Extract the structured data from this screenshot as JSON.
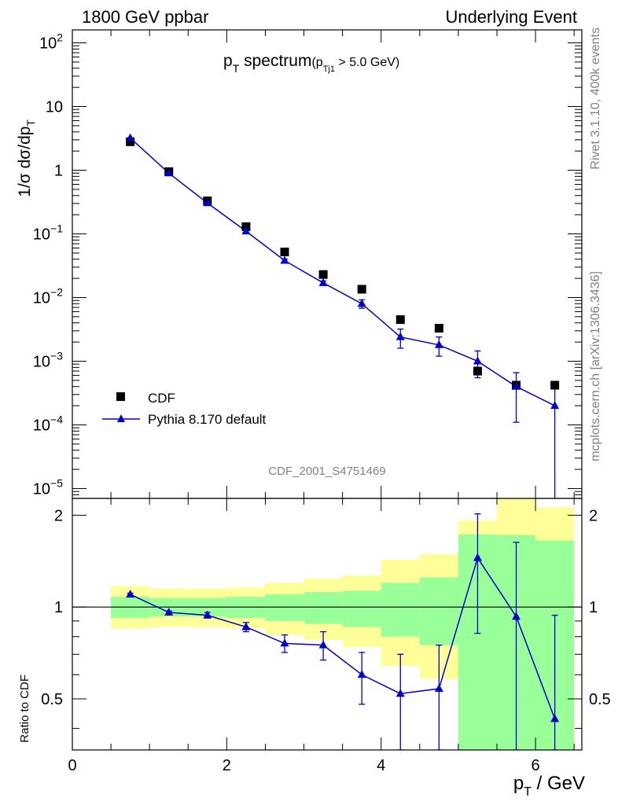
{
  "header": {
    "left": "1800 GeV ppbar",
    "right": "Underlying Event",
    "side_top": "Rivet 3.1.10,  400k events",
    "side_bottom": "mcplots.cern.ch [arXiv:1306.3436]"
  },
  "chart_data": [
    {
      "type": "scatter",
      "title": "p_T spectrum",
      "title_main": "p",
      "title_sub": "T",
      "title_rest": " spectrum",
      "cut_open": "(p",
      "cut_sub": "Tj1",
      "cut_rest": " > 5.0 GeV)",
      "analysis_label": "CDF_2001_S4751469",
      "y_scale": "log",
      "ylim": [
        7e-06,
        160
      ],
      "xlim": [
        0,
        6.6
      ],
      "ylabel_parts": [
        "1/σ dσ/dp",
        "T"
      ],
      "y_ticks": [
        {
          "value": 1e-05,
          "base": "10",
          "exp": "−5"
        },
        {
          "value": 0.0001,
          "base": "10",
          "exp": "−4"
        },
        {
          "value": 0.001,
          "base": "10",
          "exp": "−3"
        },
        {
          "value": 0.01,
          "base": "10",
          "exp": "−2"
        },
        {
          "value": 0.1,
          "base": "10",
          "exp": "−1"
        },
        {
          "value": 1,
          "base": "1",
          "exp": ""
        },
        {
          "value": 10,
          "base": "10",
          "exp": ""
        },
        {
          "value": 100,
          "base": "10",
          "exp": "2"
        }
      ],
      "legend_position": "lower-left",
      "series": [
        {
          "name": "CDF",
          "marker": "square",
          "color": "#000000",
          "x": [
            0.75,
            1.25,
            1.75,
            2.25,
            2.75,
            3.25,
            3.75,
            4.25,
            4.75,
            5.25,
            5.75,
            6.25
          ],
          "y": [
            2.8,
            0.95,
            0.33,
            0.13,
            0.052,
            0.023,
            0.0135,
            0.0045,
            0.0033,
            0.0007,
            0.00042,
            0.00042
          ]
        },
        {
          "name": "Pythia 8.170 default",
          "marker": "triangle",
          "color": "#0000cc",
          "x": [
            0.75,
            1.25,
            1.75,
            2.25,
            2.75,
            3.25,
            3.75,
            4.25,
            4.75,
            5.25,
            5.75,
            6.25
          ],
          "y": [
            3.2,
            0.9,
            0.305,
            0.11,
            0.038,
            0.017,
            0.008,
            0.0024,
            0.0018,
            0.001,
            0.0004,
            0.0002
          ],
          "err_lo": [
            0.06,
            0.015,
            0.006,
            0.004,
            0.0022,
            0.0012,
            0.0012,
            0.0008,
            0.0006,
            0.00045,
            0.00029,
            0.000199
          ],
          "err_hi": [
            0.06,
            0.015,
            0.006,
            0.004,
            0.0022,
            0.0012,
            0.0012,
            0.0008,
            0.0006,
            0.00045,
            0.00026,
            0.0002
          ]
        }
      ]
    },
    {
      "type": "scatter",
      "ylabel": "Ratio to CDF",
      "xlabel_main": "p",
      "xlabel_sub": "T",
      "xlabel_rest": " / GeV",
      "xlim": [
        0,
        6.6
      ],
      "ylim": [
        0.34,
        2.27
      ],
      "x_ticks": [
        0,
        2,
        4,
        6
      ],
      "y_ticks": [
        0.5,
        1,
        2
      ],
      "reference_line": 1,
      "bands": {
        "bins": [
          [
            0.5,
            1.0
          ],
          [
            1.0,
            1.5
          ],
          [
            1.5,
            2.0
          ],
          [
            2.0,
            2.5
          ],
          [
            2.5,
            3.0
          ],
          [
            3.0,
            3.5
          ],
          [
            3.5,
            4.0
          ],
          [
            4.0,
            4.5
          ],
          [
            4.5,
            5.0
          ],
          [
            5.0,
            5.5
          ],
          [
            5.5,
            6.0
          ],
          [
            6.0,
            6.5
          ]
        ],
        "green_color": "#99ff99",
        "yellow_color": "#ffff99",
        "green_lo": [
          0.92,
          0.93,
          0.93,
          0.92,
          0.9,
          0.88,
          0.86,
          0.8,
          0.75,
          0.34,
          0.34,
          0.34
        ],
        "green_hi": [
          1.08,
          1.07,
          1.07,
          1.08,
          1.1,
          1.12,
          1.13,
          1.2,
          1.25,
          1.73,
          1.72,
          1.65
        ],
        "yellow_lo": [
          0.85,
          0.86,
          0.86,
          0.85,
          0.81,
          0.78,
          0.74,
          0.64,
          0.58,
          0.55,
          0.34,
          0.34
        ],
        "yellow_hi": [
          1.17,
          1.15,
          1.15,
          1.16,
          1.2,
          1.24,
          1.27,
          1.43,
          1.49,
          1.92,
          2.27,
          2.12
        ]
      },
      "series": [
        {
          "name": "Pythia 8.170 default",
          "color": "#0000cc",
          "x": [
            0.75,
            1.25,
            1.75,
            2.25,
            2.75,
            3.25,
            3.75,
            4.25,
            4.75,
            5.25,
            5.75,
            6.25
          ],
          "y": [
            1.1,
            0.96,
            0.94,
            0.86,
            0.76,
            0.75,
            0.6,
            0.52,
            0.54,
            1.45,
            0.93,
            0.43
          ],
          "err_lo": [
            0.01,
            0.01,
            0.02,
            0.03,
            0.05,
            0.08,
            0.12,
            0.18,
            0.2,
            0.63,
            0.59,
            0.09
          ],
          "err_hi": [
            0.01,
            0.01,
            0.02,
            0.03,
            0.05,
            0.08,
            0.11,
            0.18,
            0.21,
            0.57,
            0.7,
            0.51
          ]
        }
      ]
    }
  ]
}
